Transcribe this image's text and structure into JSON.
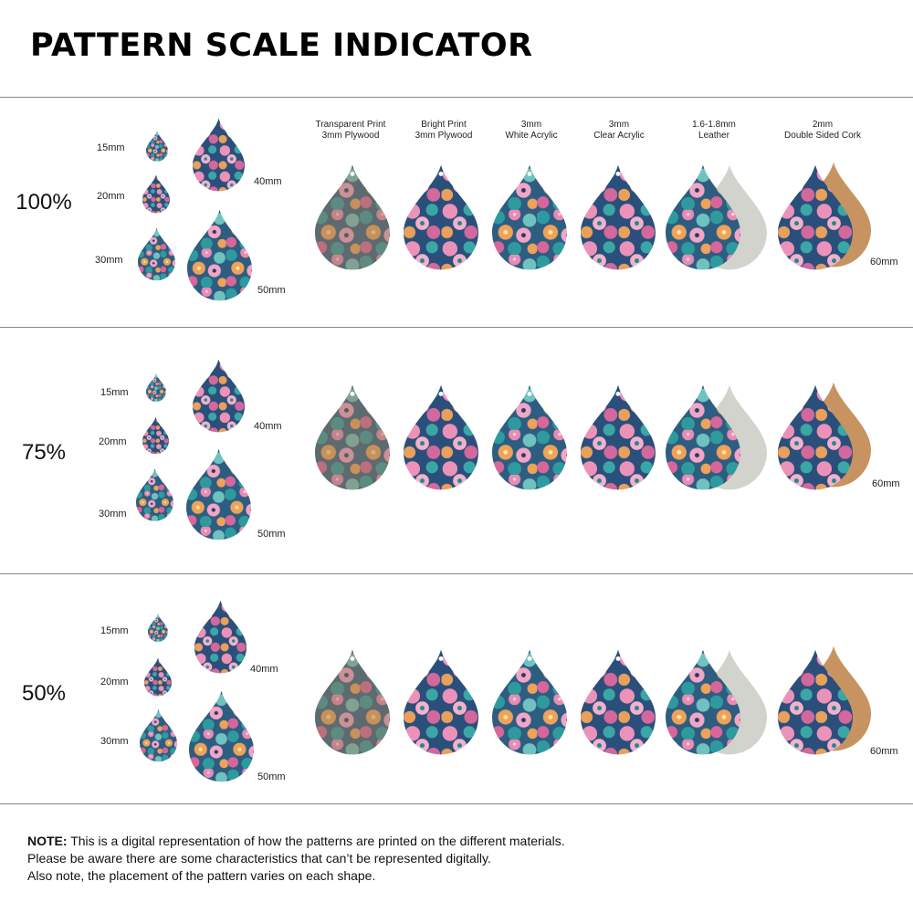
{
  "title": "PATTERN SCALE INDICATOR",
  "materials": [
    {
      "line1": "Transparent Print",
      "line2": "3mm Plywood"
    },
    {
      "line1": "Bright Print",
      "line2": "3mm Plywood"
    },
    {
      "line1": "3mm",
      "line2": "White Acrylic"
    },
    {
      "line1": "3mm",
      "line2": "Clear Acrylic"
    },
    {
      "line1": "1.6-1.8mm",
      "line2": "Leather"
    },
    {
      "line1": "2mm",
      "line2": "Double Sided Cork"
    }
  ],
  "sections": [
    {
      "scale": "100%",
      "sizes": [
        "15mm",
        "20mm",
        "30mm",
        "40mm",
        "50mm"
      ],
      "material_size": "60mm"
    },
    {
      "scale": "75%",
      "sizes": [
        "15mm",
        "20mm",
        "30mm",
        "40mm",
        "50mm"
      ],
      "material_size": "60mm"
    },
    {
      "scale": "50%",
      "sizes": [
        "15mm",
        "20mm",
        "30mm",
        "40mm",
        "50mm"
      ],
      "material_size": "60mm"
    }
  ],
  "note": {
    "label": "NOTE:",
    "line1": " This is a digital representation of how the patterns are printed on the different materials.",
    "line2": "Please be aware there are some characteristics that can’t be represented digitally.",
    "line3": "Also note, the placement of the pattern varies on each shape."
  },
  "colors": {
    "teal": "#2f9a9e",
    "navy": "#243a6a",
    "pink": "#e98bb4",
    "orange": "#eea25a",
    "leather": "#d3d3cd",
    "cork": "#c69361"
  }
}
